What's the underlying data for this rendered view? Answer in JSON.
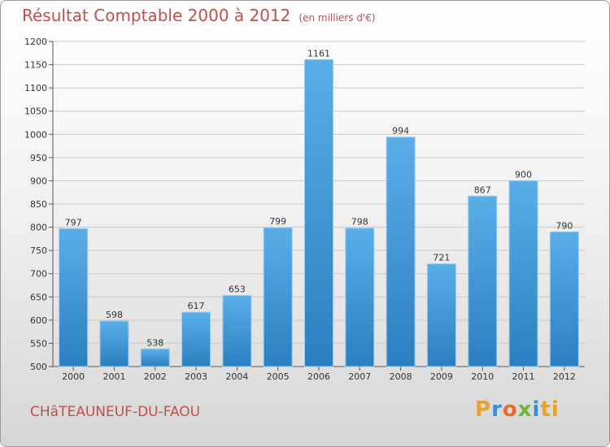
{
  "title": "Résultat Comptable 2000 à 2012",
  "subtitle": "(en milliers d'€)",
  "city": "CHâTEAUNEUF-DU-FAOU",
  "logo": [
    "P",
    "r",
    "o",
    "x",
    "i",
    "ti"
  ],
  "colors": {
    "bar_light": "#5aaee8",
    "bar_dark": "#2a7fc0",
    "title": "#c0504d"
  },
  "chart_data": {
    "type": "bar",
    "title": "Résultat Comptable 2000 à 2012",
    "categories": [
      "2000",
      "2001",
      "2002",
      "2003",
      "2004",
      "2005",
      "2006",
      "2007",
      "2008",
      "2009",
      "2010",
      "2011",
      "2012"
    ],
    "values": [
      797,
      598,
      538,
      617,
      653,
      799,
      1161,
      798,
      994,
      721,
      867,
      900,
      790
    ],
    "ylim": [
      500,
      1200
    ],
    "yticks": [
      500,
      550,
      600,
      650,
      700,
      750,
      800,
      850,
      900,
      950,
      1000,
      1050,
      1100,
      1150,
      1200
    ],
    "xlabel": "",
    "ylabel": ""
  }
}
